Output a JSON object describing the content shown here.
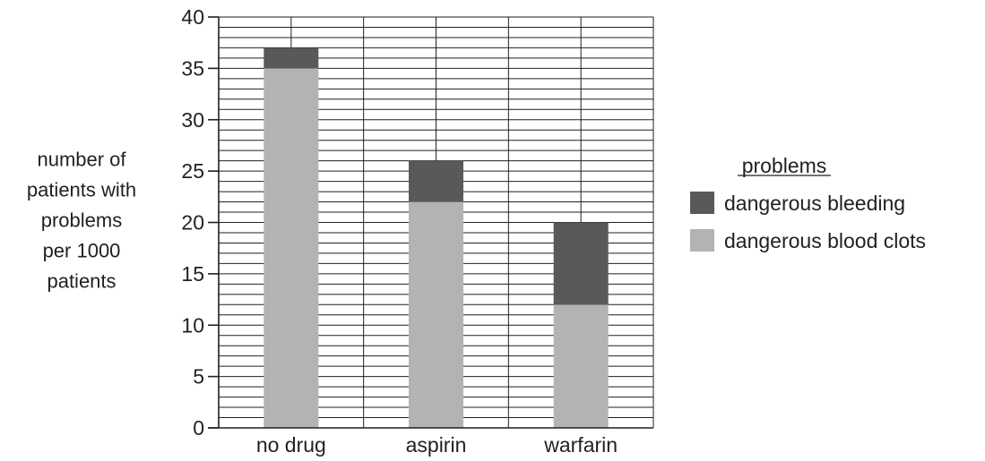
{
  "chart_data": {
    "type": "bar",
    "stacked": true,
    "categories": [
      "no drug",
      "aspirin",
      "warfarin"
    ],
    "series": [
      {
        "name": "dangerous blood clots",
        "values": [
          35,
          22,
          12
        ],
        "color": "#b3b3b3"
      },
      {
        "name": "dangerous bleeding",
        "values": [
          2,
          4,
          8
        ],
        "color": "#58595b"
      }
    ],
    "ylabel_lines": [
      "number of",
      "patients with",
      "problems",
      "per 1000",
      "patients"
    ],
    "ylim": [
      0,
      40
    ],
    "yticks": [
      0,
      5,
      10,
      15,
      20,
      25,
      30,
      35,
      40
    ],
    "minor_grid_step": 1,
    "grid": true,
    "legend": {
      "title": "problems",
      "placement": "right",
      "entries": [
        "dangerous bleeding",
        "dangerous blood clots"
      ]
    }
  }
}
